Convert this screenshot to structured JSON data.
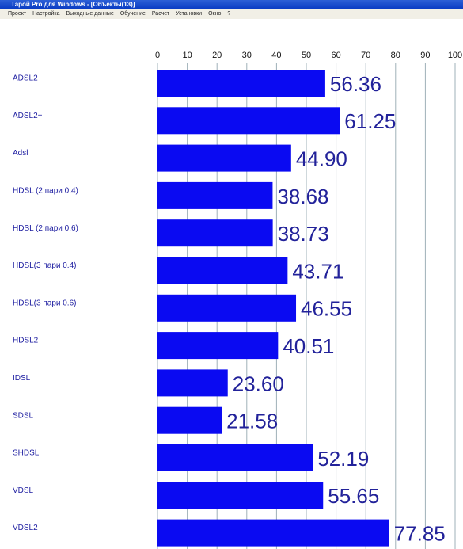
{
  "window": {
    "title": "Тарой Pro для Windows - [Объекты(13)]",
    "menu": [
      "Проект",
      "Настройка",
      "Выходные данные",
      "Обучение",
      "Расчет",
      "Установки",
      "Окно",
      "?"
    ]
  },
  "chart_data": {
    "type": "bar",
    "orientation": "horizontal",
    "categories": [
      "ADSL2",
      "ADSL2+",
      "Adsl",
      "HDSL (2 пари 0.4)",
      "HDSL (2 пари 0.6)",
      "HDSL(3 пари 0.4)",
      "HDSL(3 пари 0.6)",
      "HDSL2",
      "IDSL",
      "SDSL",
      "SHDSL",
      "VDSL",
      "VDSL2"
    ],
    "values": [
      56.36,
      61.25,
      44.9,
      38.68,
      38.73,
      43.71,
      46.55,
      40.51,
      23.6,
      21.58,
      52.19,
      55.65,
      77.85
    ],
    "value_labels": [
      "56.36",
      "61.25",
      "44.90",
      "38.68",
      "38.73",
      "43.71",
      "46.55",
      "40.51",
      "23.60",
      "21.58",
      "52.19",
      "55.65",
      "77.85"
    ],
    "color": "#0a0af2",
    "xlim": [
      0,
      100
    ],
    "xticks": [
      0,
      10,
      20,
      30,
      40,
      50,
      60,
      70,
      80,
      90,
      100
    ],
    "grid": true
  }
}
